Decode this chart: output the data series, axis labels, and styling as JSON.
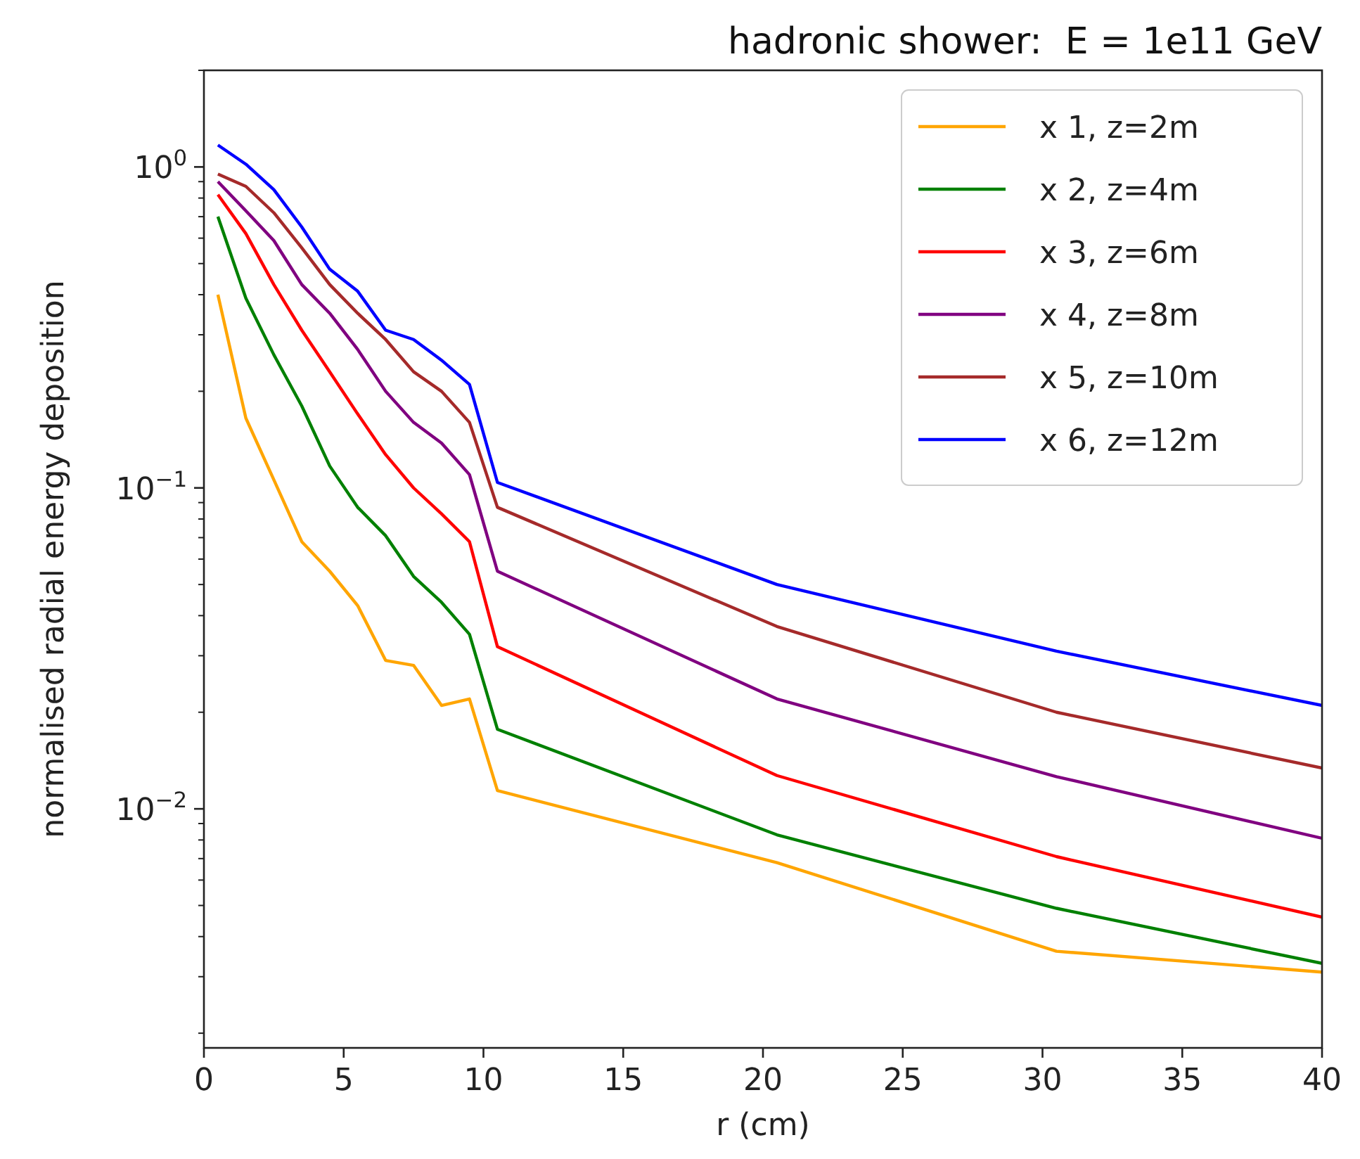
{
  "chart_data": {
    "type": "line",
    "title": "hadronic shower:  E = 1e11 GeV",
    "xlabel": "r (cm)",
    "ylabel": "normalised radial energy deposition",
    "log": "y",
    "legend": "top right",
    "grid": false,
    "xlim": [
      0,
      40
    ],
    "xticks": [
      0,
      5,
      10,
      15,
      20,
      25,
      30,
      35,
      40
    ],
    "ylim": [
      0.0018,
      2
    ],
    "yticks": [
      {
        "value": 0.01,
        "label": "10$^{−2}$"
      },
      {
        "value": 0.1,
        "label": "10$^{−1}$"
      },
      {
        "value": 1,
        "label": "10$^{0}$"
      }
    ],
    "x": [
      0.5,
      1.5,
      2.5,
      3.5,
      4.5,
      5.5,
      6.5,
      7.5,
      8.5,
      9.5,
      10.5,
      20.5,
      30.5,
      40
    ],
    "series": [
      {
        "name": "x 1, z=2m",
        "color": "#ffa500",
        "values": [
          0.4,
          0.165,
          0.106,
          0.068,
          0.055,
          0.043,
          0.029,
          0.028,
          0.021,
          0.022,
          0.0114,
          0.0068,
          0.0036,
          0.0031
        ]
      },
      {
        "name": "x 2, z=4m",
        "color": "#008000",
        "values": [
          0.7,
          0.39,
          0.26,
          0.18,
          0.117,
          0.087,
          0.071,
          0.053,
          0.044,
          0.035,
          0.0177,
          0.0083,
          0.0049,
          0.0033
        ]
      },
      {
        "name": "x 3, z=6m",
        "color": "#ff0000",
        "values": [
          0.82,
          0.62,
          0.43,
          0.31,
          0.23,
          0.17,
          0.127,
          0.1,
          0.083,
          0.068,
          0.032,
          0.0127,
          0.0071,
          0.0046
        ]
      },
      {
        "name": "x 4, z=8m",
        "color": "#800080",
        "values": [
          0.9,
          0.73,
          0.59,
          0.43,
          0.35,
          0.27,
          0.2,
          0.16,
          0.138,
          0.11,
          0.055,
          0.022,
          0.0126,
          0.0081
        ]
      },
      {
        "name": "x 5, z=10m",
        "color": "#a52a2a",
        "values": [
          0.95,
          0.87,
          0.72,
          0.56,
          0.43,
          0.35,
          0.29,
          0.23,
          0.2,
          0.16,
          0.087,
          0.037,
          0.02,
          0.0134
        ]
      },
      {
        "name": "x 6, z=12m",
        "color": "#0000ff",
        "values": [
          1.17,
          1.02,
          0.85,
          0.65,
          0.48,
          0.41,
          0.31,
          0.29,
          0.25,
          0.21,
          0.104,
          0.05,
          0.031,
          0.021
        ]
      }
    ]
  }
}
